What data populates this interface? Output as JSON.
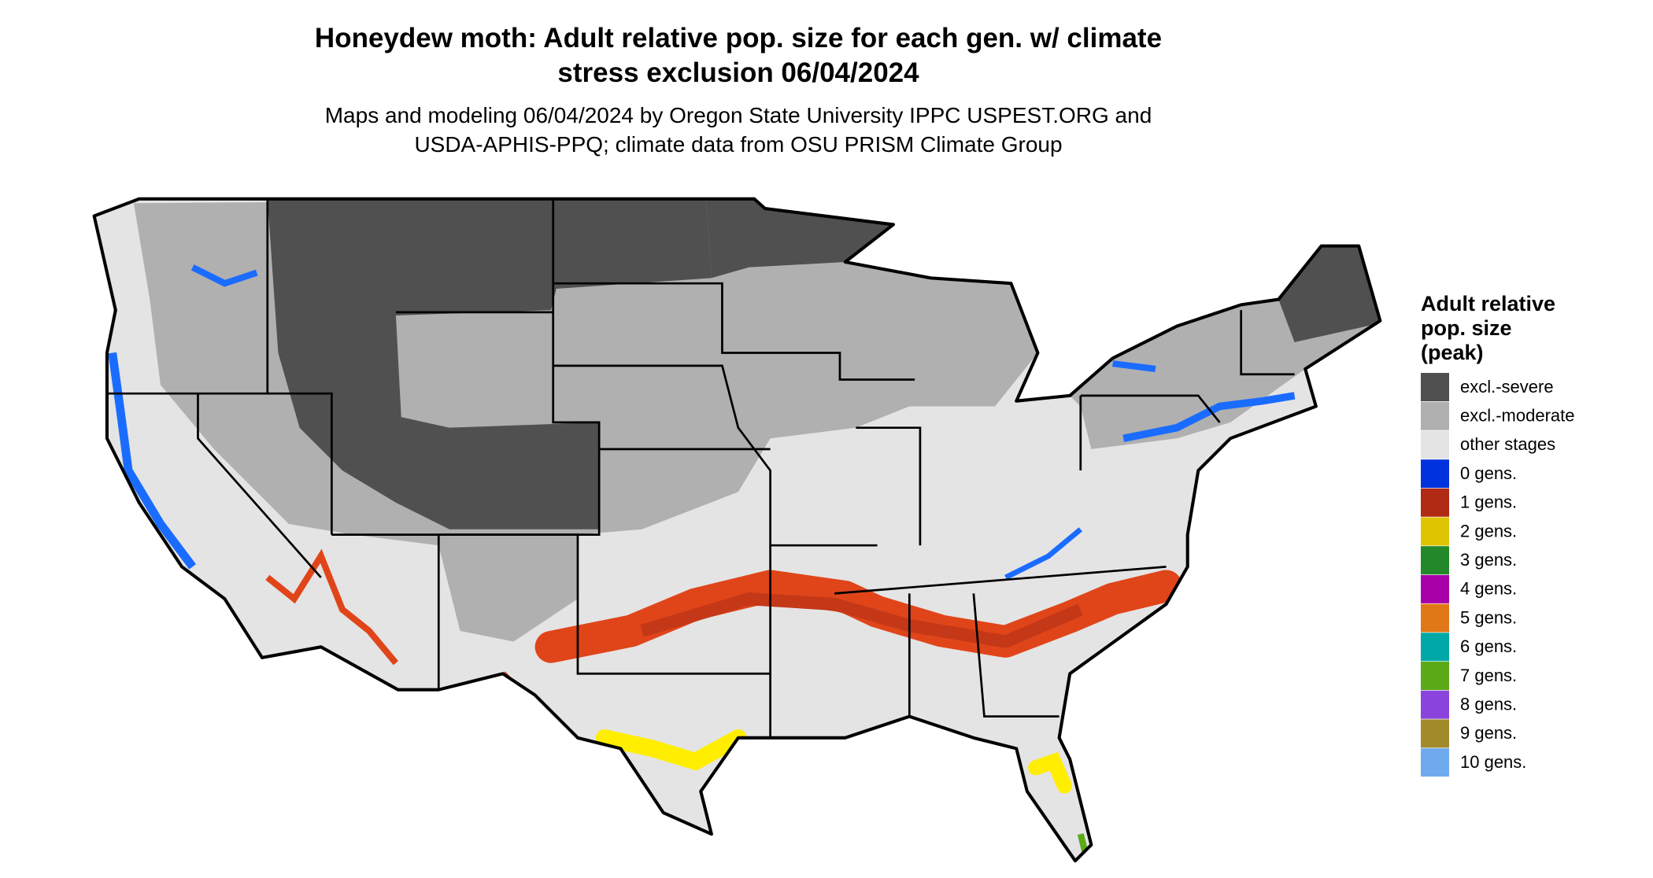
{
  "title": [
    "Honeydew moth: Adult relative pop. size for each gen. w/ climate",
    "stress exclusion 06/04/2024"
  ],
  "subtitle": [
    "Maps and modeling 06/04/2024 by Oregon State University IPPC USPEST.ORG and",
    "USDA-APHIS-PPQ; climate data from OSU PRISM Climate Group"
  ],
  "legend": {
    "title": [
      "Adult relative",
      "pop. size",
      "(peak)"
    ],
    "items": [
      {
        "label": "excl.-severe",
        "color": "#505050"
      },
      {
        "label": "excl.-moderate",
        "color": "#b0b0b0"
      },
      {
        "label": "other stages",
        "color": "#e4e4e4"
      },
      {
        "label": "0 gens.",
        "color": "#0033dd"
      },
      {
        "label": "1 gens.",
        "color": "#b02a14"
      },
      {
        "label": "2 gens.",
        "color": "#ddc400"
      },
      {
        "label": "3 gens.",
        "color": "#23882a"
      },
      {
        "label": "4 gens.",
        "color": "#a800a8"
      },
      {
        "label": "5 gens.",
        "color": "#e07818"
      },
      {
        "label": "6 gens.",
        "color": "#00a8a8"
      },
      {
        "label": "7 gens.",
        "color": "#5caa18"
      },
      {
        "label": "8 gens.",
        "color": "#8a44dd"
      },
      {
        "label": "9 gens.",
        "color": "#a08a2a"
      },
      {
        "label": "10 gens.",
        "color": "#70aaee"
      }
    ]
  }
}
